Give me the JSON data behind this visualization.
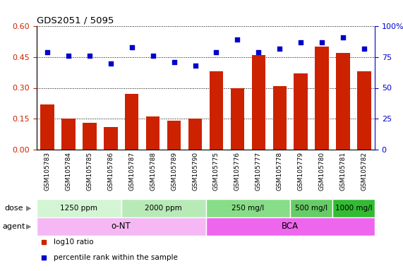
{
  "title": "GDS2051 / 5095",
  "samples": [
    "GSM105783",
    "GSM105784",
    "GSM105785",
    "GSM105786",
    "GSM105787",
    "GSM105788",
    "GSM105789",
    "GSM105790",
    "GSM105775",
    "GSM105776",
    "GSM105777",
    "GSM105778",
    "GSM105779",
    "GSM105780",
    "GSM105781",
    "GSM105782"
  ],
  "log10_ratio": [
    0.22,
    0.15,
    0.13,
    0.11,
    0.27,
    0.16,
    0.14,
    0.15,
    0.38,
    0.3,
    0.46,
    0.31,
    0.37,
    0.5,
    0.47,
    0.38
  ],
  "percentile_rank": [
    79,
    76,
    76,
    70,
    83,
    76,
    71,
    68,
    79,
    89,
    79,
    82,
    87,
    87,
    91,
    82
  ],
  "dose_groups": [
    {
      "label": "1250 ppm",
      "start": 0,
      "end": 4,
      "color": "#d4f5d4"
    },
    {
      "label": "2000 ppm",
      "start": 4,
      "end": 8,
      "color": "#b8eab8"
    },
    {
      "label": "250 mg/l",
      "start": 8,
      "end": 12,
      "color": "#88dd88"
    },
    {
      "label": "500 mg/l",
      "start": 12,
      "end": 14,
      "color": "#66cc66"
    },
    {
      "label": "1000 mg/l",
      "start": 14,
      "end": 16,
      "color": "#33bb33"
    }
  ],
  "agent_groups": [
    {
      "label": "o-NT",
      "start": 0,
      "end": 8,
      "color": "#f5b8f5"
    },
    {
      "label": "BCA",
      "start": 8,
      "end": 16,
      "color": "#ee66ee"
    }
  ],
  "bar_color": "#cc2200",
  "dot_color": "#0000cc",
  "ylim_left": [
    0,
    0.6
  ],
  "ylim_right": [
    0,
    100
  ],
  "yticks_left": [
    0,
    0.15,
    0.3,
    0.45,
    0.6
  ],
  "yticks_right": [
    0,
    25,
    50,
    75,
    100
  ],
  "legend_items": [
    {
      "color": "#cc2200",
      "marker": "s",
      "label": "log10 ratio"
    },
    {
      "color": "#0000cc",
      "marker": "s",
      "label": "percentile rank within the sample"
    }
  ]
}
